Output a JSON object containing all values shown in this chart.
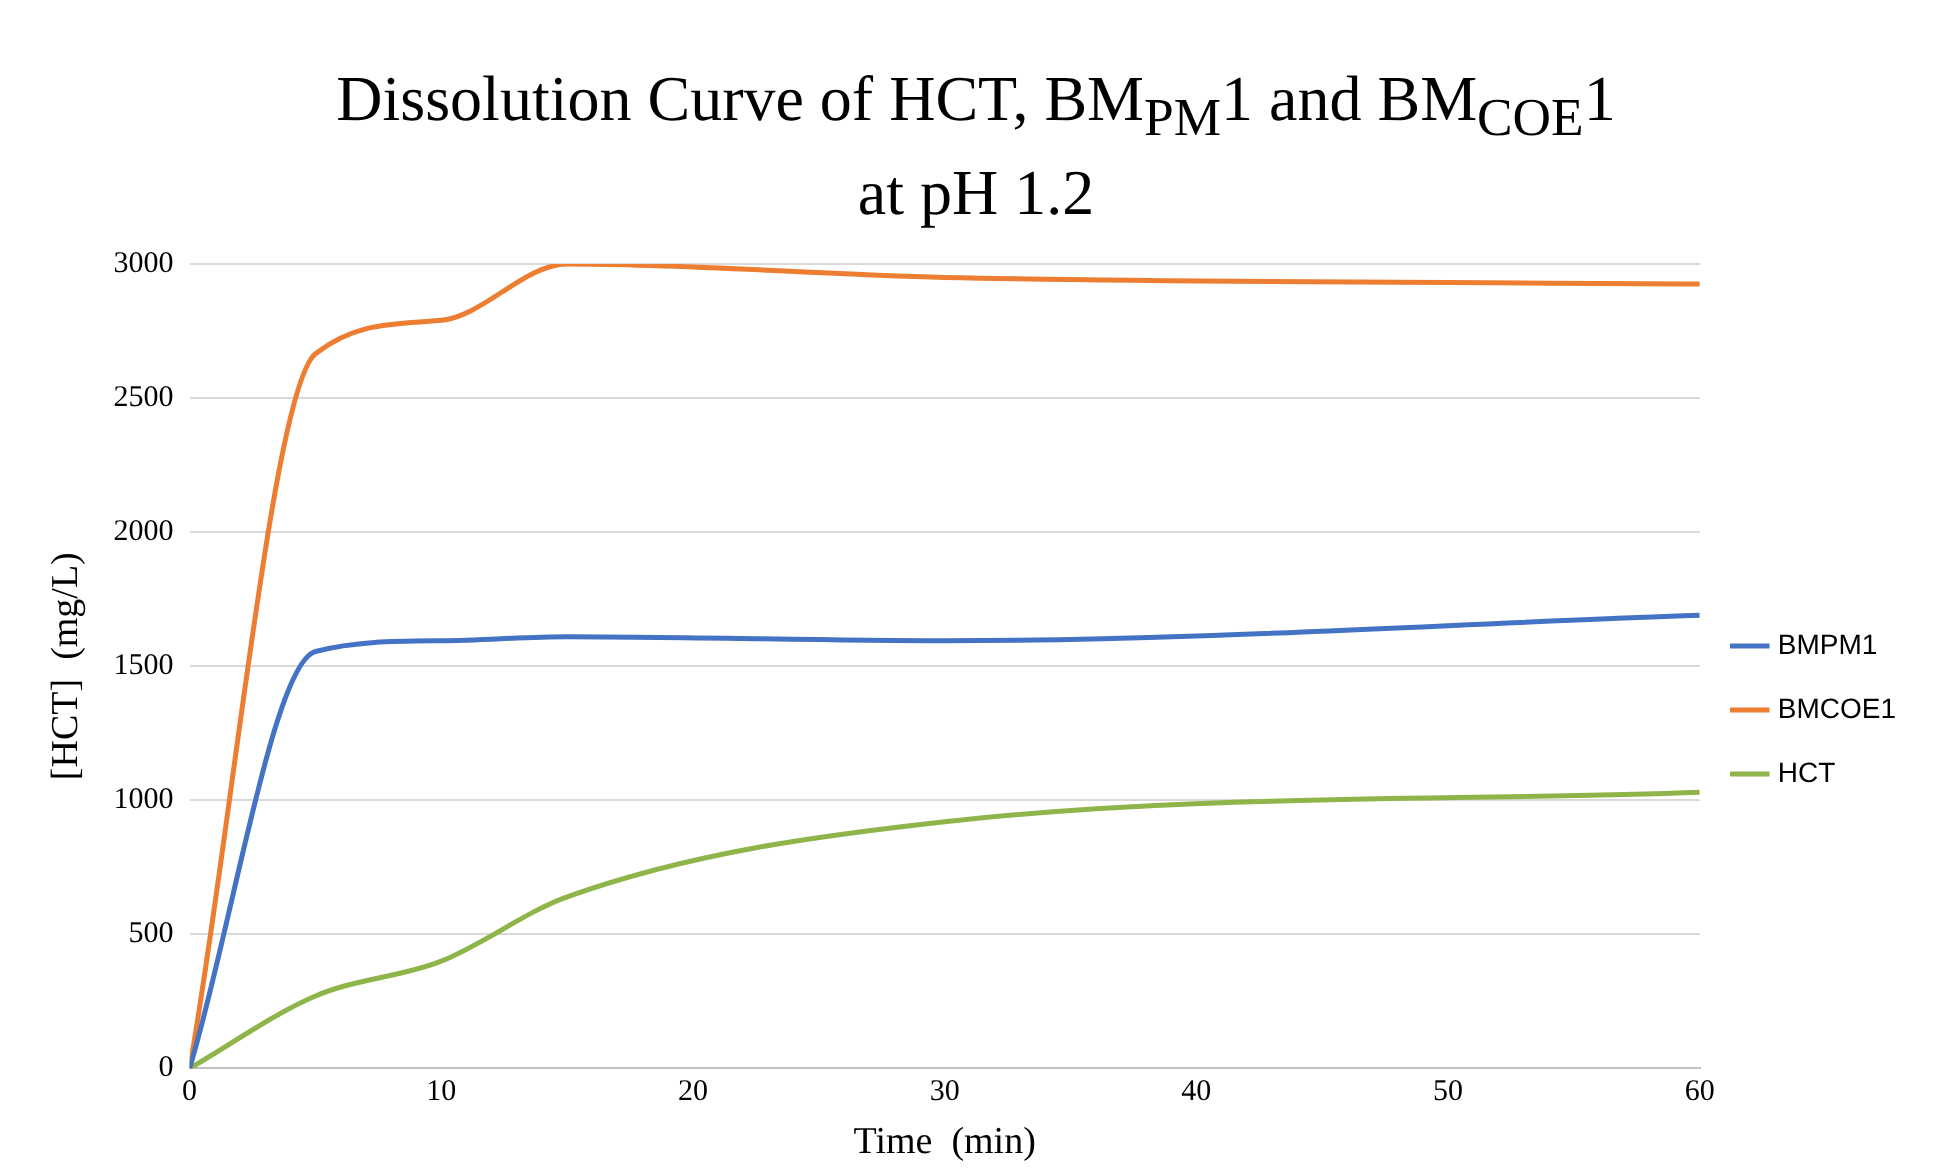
{
  "chart_data": {
    "type": "line",
    "title": "Dissolution Curve of HCT, BM$_{PM}$1 and BM$_{COE}$1\nat pH 1.2",
    "xlabel": "Time  (min)",
    "ylabel": "[HCT]  (mg/L)",
    "x": [
      0,
      5,
      10,
      15,
      30,
      60
    ],
    "series": [
      {
        "name": "BMPM1",
        "color": "#4472c4",
        "values": [
          0,
          1555,
          1595,
          1610,
          1595,
          1690
        ]
      },
      {
        "name": "BMCOE1",
        "color": "#ed7d31",
        "values": [
          0,
          2665,
          2790,
          3000,
          2950,
          2925
        ]
      },
      {
        "name": "HCT",
        "color": "#8fb54a",
        "values": [
          0,
          270,
          400,
          640,
          920,
          1030
        ]
      }
    ],
    "xlim": [
      0,
      60
    ],
    "xticks": [
      0,
      10,
      20,
      30,
      40,
      50,
      60
    ],
    "ylim": [
      0,
      3000
    ],
    "yticks": [
      0,
      500,
      1000,
      1500,
      2000,
      2500,
      3000
    ],
    "grid": "y",
    "legend": "right",
    "marker": "none",
    "line_style": "solid"
  }
}
